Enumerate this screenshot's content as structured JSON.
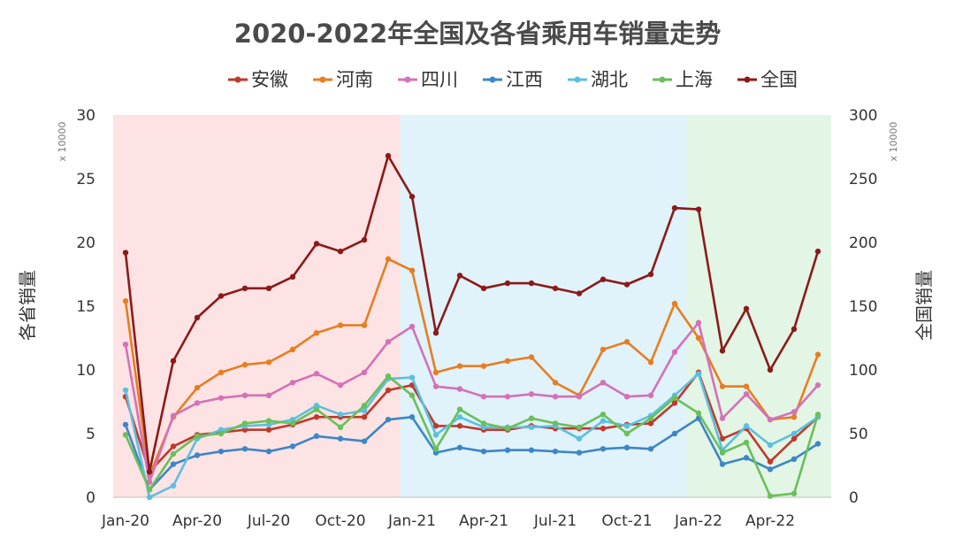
{
  "chart_data": {
    "type": "line",
    "title": "2020-2022年全国及各省乘用车销量走势",
    "ylabel": "各省销量",
    "y2label": "全国销量",
    "y_unit": "x 10000",
    "y2_unit": "x 10000",
    "ylim": [
      0,
      30
    ],
    "y2lim": [
      0,
      300
    ],
    "yticks": [
      "0",
      "5",
      "10",
      "15",
      "20",
      "25",
      "30"
    ],
    "y2ticks": [
      "0",
      "50",
      "100",
      "150",
      "200",
      "250",
      "300"
    ],
    "x_labels": [
      "Jan-20",
      "Apr-20",
      "Jul-20",
      "Oct-20",
      "Jan-21",
      "Apr-21",
      "Jul-21",
      "Oct-21",
      "Jan-22",
      "Apr-22"
    ],
    "x_label_month_index": [
      0,
      3,
      6,
      9,
      12,
      15,
      18,
      21,
      24,
      27
    ],
    "months_count": 30,
    "shaded_periods": [
      {
        "year": "2020",
        "start": 0,
        "end": 12,
        "color": "#fde3e3"
      },
      {
        "year": "2021",
        "start": 12,
        "end": 24,
        "color": "#e0f2fa"
      },
      {
        "year": "2022",
        "start": 24,
        "end": 29.5,
        "color": "#e3f5e5"
      }
    ],
    "series": [
      {
        "name": "安徽",
        "color": "#c0392b",
        "axis": "left",
        "values": [
          7.9,
          2.0,
          4.0,
          4.9,
          5.1,
          5.3,
          5.3,
          5.7,
          6.3,
          6.3,
          6.3,
          8.4,
          8.8,
          5.6,
          5.6,
          5.3,
          5.3,
          5.6,
          5.4,
          5.4,
          5.4,
          5.7,
          5.8,
          7.4,
          9.8,
          4.6,
          5.4,
          2.8,
          4.6,
          6.3
        ]
      },
      {
        "name": "河南",
        "color": "#e67e22",
        "axis": "left",
        "values": [
          15.4,
          1.7,
          6.3,
          8.6,
          9.8,
          10.4,
          10.6,
          11.6,
          12.9,
          13.5,
          13.5,
          18.7,
          17.8,
          9.8,
          10.3,
          10.3,
          10.7,
          11.0,
          9.0,
          8.0,
          11.6,
          12.2,
          10.6,
          15.2,
          12.5,
          8.7,
          8.7,
          6.1,
          6.3,
          11.2
        ]
      },
      {
        "name": "四川",
        "color": "#d471b8",
        "axis": "left",
        "values": [
          12.0,
          1.2,
          6.4,
          7.4,
          7.8,
          8.0,
          8.0,
          9.0,
          9.7,
          8.8,
          9.8,
          12.2,
          13.4,
          8.7,
          8.5,
          7.9,
          7.9,
          8.1,
          7.9,
          7.9,
          9.0,
          7.9,
          8.0,
          11.4,
          13.7,
          6.2,
          8.1,
          6.1,
          6.7,
          8.8
        ]
      },
      {
        "name": "江西",
        "color": "#3d86c6",
        "axis": "left",
        "values": [
          5.7,
          0.6,
          2.6,
          3.3,
          3.6,
          3.8,
          3.6,
          4.0,
          4.8,
          4.6,
          4.4,
          6.1,
          6.3,
          3.5,
          3.9,
          3.6,
          3.7,
          3.7,
          3.6,
          3.5,
          3.8,
          3.9,
          3.8,
          5.0,
          6.2,
          2.6,
          3.1,
          2.2,
          3.0,
          4.2
        ]
      },
      {
        "name": "湖北",
        "color": "#5bc0de",
        "axis": "left",
        "values": [
          8.4,
          0.0,
          0.9,
          4.6,
          5.3,
          5.6,
          5.7,
          6.1,
          7.2,
          6.5,
          6.8,
          9.3,
          9.4,
          4.9,
          6.3,
          5.5,
          5.5,
          5.5,
          5.6,
          4.6,
          6.0,
          5.6,
          6.4,
          8.0,
          9.7,
          3.7,
          5.6,
          4.1,
          5.0,
          6.3
        ]
      },
      {
        "name": "上海",
        "color": "#6abf5a",
        "axis": "left",
        "values": [
          4.9,
          0.6,
          3.4,
          4.8,
          5.0,
          5.8,
          6.0,
          5.8,
          6.9,
          5.5,
          7.2,
          9.5,
          8.0,
          3.8,
          6.9,
          5.8,
          5.4,
          6.2,
          5.8,
          5.5,
          6.5,
          5.0,
          6.2,
          7.8,
          6.6,
          3.5,
          4.3,
          0.1,
          0.3,
          6.5
        ]
      },
      {
        "name": "全国",
        "color": "#8b1a1a",
        "axis": "right",
        "values": [
          192,
          20,
          107,
          141,
          158,
          164,
          164,
          173,
          199,
          193,
          202,
          268,
          236,
          129,
          174,
          164,
          168,
          168,
          164,
          160,
          171,
          167,
          175,
          227,
          226,
          115,
          148,
          100,
          132,
          193
        ]
      }
    ]
  }
}
